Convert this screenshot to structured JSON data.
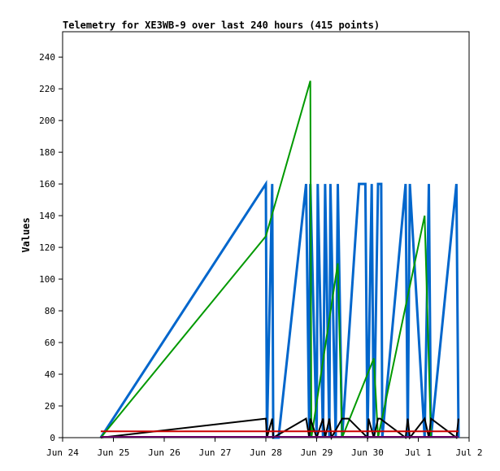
{
  "chart_data": {
    "type": "line",
    "title": "Telemetry for XE3WB-9 over last 240 hours (415 points)",
    "xlabel": "",
    "ylabel": "Values",
    "x_tick_labels": [
      "Jun 24",
      "Jun 25",
      "Jun 26",
      "Jun 27",
      "Jun 28",
      "Jun 29",
      "Jun 30",
      "Jul 1",
      "Jul 2"
    ],
    "xlim": [
      "2023-06-24T00:00",
      "2023-07-02T00:00"
    ],
    "y_ticks": [
      0,
      20,
      40,
      60,
      80,
      100,
      120,
      140,
      160,
      180,
      200,
      220,
      240
    ],
    "ylim": [
      0,
      256
    ],
    "grid": false,
    "legend": "none",
    "series": [
      {
        "color": "#0066cc",
        "x": [
          "2023-06-24T18:00",
          "2023-06-28T00:00",
          "2023-06-28T00:30",
          "2023-06-28T03:00",
          "2023-06-28T03:30",
          "2023-06-28T06:00",
          "2023-06-28T19:00",
          "2023-06-28T20:30",
          "2023-06-28T21:00",
          "2023-06-29T00:00",
          "2023-06-29T00:30",
          "2023-06-29T03:00",
          "2023-06-29T04:00",
          "2023-06-29T06:00",
          "2023-06-29T06:30",
          "2023-06-29T09:00",
          "2023-06-29T10:00",
          "2023-06-29T12:00",
          "2023-06-29T20:00",
          "2023-06-29T23:00",
          "2023-06-30T00:00",
          "2023-06-30T02:00",
          "2023-06-30T03:00",
          "2023-06-30T05:00",
          "2023-06-30T06:30",
          "2023-06-30T07:00",
          "2023-06-30T18:00",
          "2023-06-30T19:00",
          "2023-06-30T20:00",
          "2023-07-01T03:00",
          "2023-07-01T05:00",
          "2023-07-01T06:00",
          "2023-07-01T18:00",
          "2023-07-01T19:00"
        ],
        "y": [
          0,
          160,
          0,
          160,
          0,
          0,
          160,
          0,
          160,
          0,
          160,
          0,
          160,
          0,
          160,
          0,
          160,
          0,
          160,
          160,
          0,
          160,
          0,
          160,
          160,
          0,
          160,
          0,
          160,
          0,
          160,
          0,
          160,
          0
        ]
      },
      {
        "color": "#009900",
        "x": [
          "2023-06-24T18:00",
          "2023-06-28T00:00",
          "2023-06-28T21:00",
          "2023-06-28T21:30",
          "2023-06-29T10:00",
          "2023-06-29T12:00",
          "2023-06-30T03:00",
          "2023-06-30T05:00",
          "2023-07-01T03:00",
          "2023-07-01T06:00"
        ],
        "y": [
          0,
          127,
          225,
          0,
          110,
          0,
          50,
          0,
          140,
          0
        ]
      },
      {
        "color": "#000000",
        "x": [
          "2023-06-24T18:00",
          "2023-06-28T00:00",
          "2023-06-28T00:30",
          "2023-06-28T03:00",
          "2023-06-28T03:30",
          "2023-06-28T19:00",
          "2023-06-28T20:30",
          "2023-06-28T21:00",
          "2023-06-29T00:00",
          "2023-06-29T03:00",
          "2023-06-29T04:00",
          "2023-06-29T06:00",
          "2023-06-29T07:00",
          "2023-06-29T12:00",
          "2023-06-29T15:00",
          "2023-06-30T00:00",
          "2023-06-30T00:30",
          "2023-06-30T03:00",
          "2023-06-30T05:00",
          "2023-06-30T06:00",
          "2023-06-30T18:00",
          "2023-06-30T19:00",
          "2023-06-30T20:00",
          "2023-07-01T03:00",
          "2023-07-01T05:00",
          "2023-07-01T06:00",
          "2023-07-01T18:00",
          "2023-07-01T19:00"
        ],
        "y": [
          0,
          12,
          0,
          12,
          0,
          12,
          0,
          12,
          0,
          12,
          0,
          12,
          0,
          12,
          12,
          0,
          12,
          0,
          12,
          12,
          0,
          12,
          0,
          12,
          0,
          12,
          0,
          12
        ]
      },
      {
        "color": "#cc0000",
        "x": [
          "2023-06-24T18:00",
          "2023-07-01T19:00"
        ],
        "y": [
          4,
          4
        ]
      },
      {
        "color": "#660066",
        "x": [
          "2023-06-24T18:00",
          "2023-07-01T19:00"
        ],
        "y": [
          0.5,
          0.5
        ]
      }
    ]
  }
}
